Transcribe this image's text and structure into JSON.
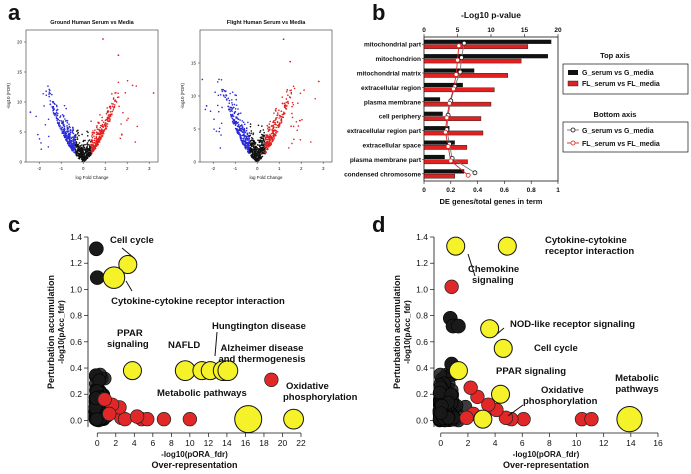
{
  "panel_letters": [
    "a",
    "b",
    "c",
    "d"
  ],
  "chart_data": [
    {
      "panel": "a-left",
      "type": "scatter",
      "title": "Ground Human Serum vs Media",
      "xlabel": "log Fold Change",
      "ylabel": "-log10 (FDR)",
      "xlim": [
        -2.6,
        3.4
      ],
      "ylim": [
        0,
        22
      ],
      "xticks": [
        "-2",
        "-1",
        "0",
        "1",
        "2",
        "3"
      ],
      "yticks": [
        "0",
        "5",
        "10",
        "15",
        "20"
      ],
      "colors": {
        "down": "#2b2bd9",
        "up": "#e12020",
        "ns": "#111111"
      },
      "outliers": [
        {
          "x": 0.9,
          "y": 20.5,
          "color": "#e12020"
        },
        {
          "x": 1.6,
          "y": 17.8,
          "color": "#e12020"
        },
        {
          "x": 3.2,
          "y": 11.5,
          "color": "#e12020"
        },
        {
          "x": -2.4,
          "y": 8.3,
          "color": "#2b2bd9"
        }
      ]
    },
    {
      "panel": "a-right",
      "type": "scatter",
      "title": "Flight Human Serum vs Media",
      "xlabel": "log Fold Change",
      "ylabel": "-log10 (FDR)",
      "xlim": [
        -2.6,
        3.4
      ],
      "ylim": [
        0,
        20
      ],
      "xticks": [
        "-2",
        "-1",
        "0",
        "1",
        "2",
        "3"
      ],
      "yticks": [
        "0",
        "5",
        "10",
        "15"
      ],
      "colors": {
        "down": "#2b2bd9",
        "up": "#e12020",
        "ns": "#111111"
      },
      "outliers": [
        {
          "x": 1.2,
          "y": 18.6,
          "color": "#e12020"
        },
        {
          "x": 1.5,
          "y": 15.2,
          "color": "#e12020"
        },
        {
          "x": 2.8,
          "y": 12.2,
          "color": "#e12020"
        },
        {
          "x": -2.3,
          "y": 8.5,
          "color": "#2b2bd9"
        }
      ]
    },
    {
      "panel": "b",
      "type": "bar",
      "top_axis_label": "-Log10 p-value",
      "top_axis_ticks": [
        0,
        5,
        10,
        15,
        20
      ],
      "bottom_axis_label": "DE genes/total genes in term",
      "bottom_axis_ticks": [
        0,
        0.2,
        0.4,
        0.6,
        0.8,
        1
      ],
      "categories": [
        "mitochondrial part",
        "mitochondrion",
        "mitochondrial matrix",
        "extracellular region",
        "plasma membrane",
        "cell periphery",
        "extracellular region part",
        "extracellular space",
        "plasma membrane part",
        "condensed chromosome"
      ],
      "series": [
        {
          "name": "G_serum vs G_media",
          "axis": "top",
          "color": "#111111",
          "values": [
            19.0,
            18.5,
            7.5,
            5.8,
            2.4,
            2.8,
            3.8,
            4.6,
            3.1,
            6.0
          ]
        },
        {
          "name": "FL_serum vs FL_media",
          "axis": "top",
          "color": "#e12020",
          "values": [
            15.5,
            14.5,
            12.5,
            10.5,
            10.0,
            8.5,
            8.8,
            6.4,
            6.5,
            4.6
          ]
        },
        {
          "name": "G_serum vs G_media",
          "axis": "bottom",
          "color": "#111111",
          "values": [
            0.3,
            0.28,
            0.27,
            0.23,
            0.2,
            0.18,
            0.17,
            0.19,
            0.21,
            0.38
          ]
        },
        {
          "name": "FL_serum vs FL_media",
          "axis": "bottom",
          "color": "#e12020",
          "values": [
            0.26,
            0.25,
            0.24,
            0.22,
            0.19,
            0.17,
            0.16,
            0.18,
            0.2,
            0.33
          ]
        }
      ],
      "legend_top_title": "Top axis",
      "legend_bottom_title": "Bottom axis",
      "legend_top_entries": [
        "G_serum vs G_media",
        "FL_serum vs FL_media"
      ],
      "legend_bottom_entries": [
        "G_serum vs G_media",
        "FL_serum vs FL_media"
      ]
    },
    {
      "panel": "c",
      "type": "scatter",
      "xlabel": "-log10(pORA_fdr)",
      "xlabel2": "Over-representation",
      "ylabel": "Perturbation accumulation",
      "ylabel2": "-log10(pAcc_fdr)",
      "xlim": [
        -1,
        22
      ],
      "ylim": [
        -0.05,
        1.4
      ],
      "xticks": [
        0,
        2,
        4,
        6,
        8,
        10,
        12,
        14,
        16,
        18,
        20,
        22
      ],
      "yticks": [
        "0.0",
        "0.2",
        "0.4",
        "0.6",
        "0.8",
        "1.0",
        "1.2",
        "1.4"
      ],
      "labels": [
        "Cell cycle",
        "Cytokine-cytokine receptor interaction",
        "PPAR",
        "signaling",
        "NAFLD",
        "Hungtington  disease",
        "Alzheimer disease",
        "and thermogenesis",
        "Metabolic pathways",
        "Oxidative",
        "phosphorylation"
      ],
      "highlight_points": [
        {
          "x": 3.3,
          "y": 1.19,
          "r": 1.0
        },
        {
          "x": 1.8,
          "y": 1.09,
          "r": 1.2
        },
        {
          "x": 3.8,
          "y": 0.38,
          "r": 1.0
        },
        {
          "x": 9.5,
          "y": 0.38,
          "r": 1.1
        },
        {
          "x": 11.3,
          "y": 0.38,
          "r": 1.0
        },
        {
          "x": 12.2,
          "y": 0.38,
          "r": 1.0
        },
        {
          "x": 13.6,
          "y": 0.38,
          "r": 1.1
        },
        {
          "x": 14.1,
          "y": 0.38,
          "r": 1.1
        },
        {
          "x": 16.3,
          "y": 0.01,
          "r": 1.5
        },
        {
          "x": 21.2,
          "y": 0.01,
          "r": 1.1
        }
      ],
      "red_points": [
        {
          "x": 18.8,
          "y": 0.31
        },
        {
          "x": 10.0,
          "y": 0.01
        },
        {
          "x": 7.2,
          "y": 0.01
        },
        {
          "x": 4.8,
          "y": 0.01
        },
        {
          "x": 5.4,
          "y": 0.01
        },
        {
          "x": 2.6,
          "y": 0.02
        },
        {
          "x": 3.0,
          "y": 0.01
        },
        {
          "x": 4.3,
          "y": 0.03
        },
        {
          "x": 2.4,
          "y": 0.1
        },
        {
          "x": 1.6,
          "y": 0.12
        },
        {
          "x": 0.8,
          "y": 0.16
        },
        {
          "x": 1.3,
          "y": 0.05
        }
      ],
      "black_points_isolated": [
        {
          "x": -0.1,
          "y": 1.31
        },
        {
          "x": 0.0,
          "y": 1.09
        }
      ]
    },
    {
      "panel": "d",
      "type": "scatter",
      "xlabel": "-log10(pORA_fdr)",
      "xlabel2": "Over-representation",
      "ylabel": "Perturbation accumulation",
      "ylabel2": "-log10(pAcc_fdr)",
      "xlim": [
        -0.5,
        16
      ],
      "ylim": [
        -0.05,
        1.4
      ],
      "xticks": [
        0,
        2,
        4,
        6,
        8,
        10,
        12,
        14,
        16
      ],
      "yticks": [
        "0.0",
        "0.2",
        "0.4",
        "0.6",
        "0.8",
        "1.0",
        "1.2",
        "1.4"
      ],
      "labels": [
        "Cytokine-cytokine",
        "receptor interaction",
        "Chemokine",
        "signaling",
        "NOD-like receptor signaling",
        "Cell cycle",
        "PPAR signaling",
        "Oxidative",
        "phosphorylation",
        "Metabolic",
        "pathways"
      ],
      "highlight_points": [
        {
          "x": 1.1,
          "y": 1.33,
          "r": 1.0
        },
        {
          "x": 4.9,
          "y": 1.33,
          "r": 1.0
        },
        {
          "x": 3.6,
          "y": 0.7,
          "r": 1.0
        },
        {
          "x": 4.6,
          "y": 0.55,
          "r": 1.0
        },
        {
          "x": 1.3,
          "y": 0.38,
          "r": 1.0
        },
        {
          "x": 4.4,
          "y": 0.2,
          "r": 1.0
        },
        {
          "x": 3.1,
          "y": 0.01,
          "r": 1.0
        },
        {
          "x": 13.9,
          "y": 0.01,
          "r": 1.4
        }
      ],
      "red_points": [
        {
          "x": 0.8,
          "y": 1.02
        },
        {
          "x": 10.4,
          "y": 0.01
        },
        {
          "x": 11.1,
          "y": 0.01
        },
        {
          "x": 6.1,
          "y": 0.01
        },
        {
          "x": 5.2,
          "y": 0.01
        },
        {
          "x": 4.8,
          "y": 0.02
        },
        {
          "x": 4.1,
          "y": 0.08
        },
        {
          "x": 3.5,
          "y": 0.12
        },
        {
          "x": 2.7,
          "y": 0.18
        },
        {
          "x": 2.4,
          "y": 0.05
        },
        {
          "x": 1.9,
          "y": 0.02
        },
        {
          "x": 2.2,
          "y": 0.25
        }
      ],
      "black_points_isolated": [
        {
          "x": 0.7,
          "y": 0.78
        },
        {
          "x": 0.9,
          "y": 0.72
        },
        {
          "x": 1.3,
          "y": 0.72
        },
        {
          "x": 0.8,
          "y": 0.43
        }
      ]
    }
  ]
}
